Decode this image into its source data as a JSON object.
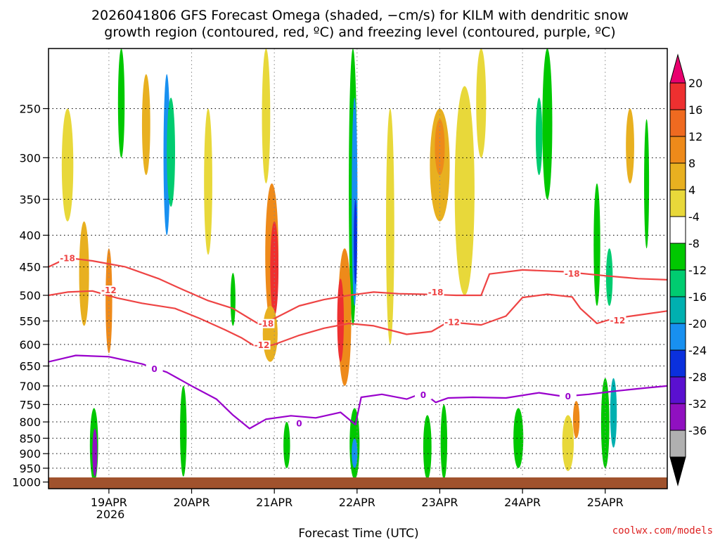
{
  "colors": {
    "snow_growth": "#ee4444",
    "freezing": "#9900cc",
    "ground": "#a0522d",
    "credit": "#dd2222"
  },
  "chart_data": {
    "type": "heatmap",
    "title_line1": "2026041806 GFS Forecast Omega (shaded, −cm/s) for KILM with dendritic snow",
    "title_line2": "growth region (contoured, red, ºC) and freezing level (contoured, purple, ºC)",
    "xlabel": "Forecast Time (UTC)",
    "credit": "coolwx.com/models",
    "x_year_label": "2026",
    "x_ticks": [
      {
        "day": 1,
        "label": "19APR"
      },
      {
        "day": 2,
        "label": "20APR"
      },
      {
        "day": 3,
        "label": "21APR"
      },
      {
        "day": 4,
        "label": "22APR"
      },
      {
        "day": 5,
        "label": "23APR"
      },
      {
        "day": 6,
        "label": "24APR"
      },
      {
        "day": 7,
        "label": "25APR"
      }
    ],
    "xlim_days": [
      0.27,
      7.75
    ],
    "y_ticks": [
      "250",
      "300",
      "350",
      "400",
      "450",
      "500",
      "550",
      "600",
      "650",
      "700",
      "750",
      "800",
      "850",
      "900",
      "950",
      "1000"
    ],
    "y_tick_values": [
      250,
      300,
      350,
      400,
      450,
      500,
      550,
      600,
      650,
      700,
      750,
      800,
      850,
      900,
      950,
      1000
    ],
    "ylim_hpa": [
      200,
      1025
    ],
    "colorbar": {
      "labels": [
        "20",
        "16",
        "12",
        "8",
        "4",
        "-4",
        "-8",
        "-12",
        "-16",
        "-20",
        "-24",
        "-28",
        "-32",
        "-36"
      ],
      "colors": [
        "#e8006e",
        "#ee3030",
        "#ef6a20",
        "#ee8a1a",
        "#e8b020",
        "#e8d83a",
        "#ffffff",
        "#00c800",
        "#00cc70",
        "#00b0b0",
        "#1890f0",
        "#0a30dd",
        "#5a10d0",
        "#9010c0",
        "#b0b0b0",
        "#000000"
      ]
    },
    "series": [
      {
        "name": "-18 ºC",
        "type": "contour",
        "color": "#ee4444",
        "label": "-18",
        "points": [
          [
            0.27,
            450
          ],
          [
            0.5,
            435
          ],
          [
            0.8,
            440
          ],
          [
            1.2,
            450
          ],
          [
            1.6,
            470
          ],
          [
            1.9,
            490
          ],
          [
            2.2,
            510
          ],
          [
            2.5,
            525
          ],
          [
            2.7,
            545
          ],
          [
            2.85,
            560
          ],
          [
            3.0,
            545
          ],
          [
            3.3,
            520
          ],
          [
            3.6,
            508
          ],
          [
            3.9,
            500
          ],
          [
            4.2,
            494
          ],
          [
            4.5,
            497
          ],
          [
            4.8,
            498
          ],
          [
            5.2,
            500
          ],
          [
            5.5,
            500
          ],
          [
            5.6,
            462
          ],
          [
            6.0,
            455
          ],
          [
            6.5,
            458
          ],
          [
            7.0,
            465
          ],
          [
            7.4,
            470
          ],
          [
            7.75,
            472
          ]
        ],
        "label_at": [
          [
            0.5,
            436
          ],
          [
            2.9,
            556
          ],
          [
            4.95,
            495
          ],
          [
            6.6,
            462
          ]
        ]
      },
      {
        "name": "-12 ºC",
        "type": "contour",
        "color": "#ee4444",
        "label": "-12",
        "points": [
          [
            0.27,
            500
          ],
          [
            0.5,
            494
          ],
          [
            0.8,
            492
          ],
          [
            1.1,
            505
          ],
          [
            1.4,
            515
          ],
          [
            1.8,
            525
          ],
          [
            2.1,
            545
          ],
          [
            2.4,
            568
          ],
          [
            2.6,
            585
          ],
          [
            2.8,
            608
          ],
          [
            3.0,
            600
          ],
          [
            3.3,
            580
          ],
          [
            3.6,
            565
          ],
          [
            3.9,
            555
          ],
          [
            4.2,
            560
          ],
          [
            4.6,
            578
          ],
          [
            4.9,
            572
          ],
          [
            5.1,
            552
          ],
          [
            5.5,
            558
          ],
          [
            5.8,
            540
          ],
          [
            6.0,
            504
          ],
          [
            6.3,
            498
          ],
          [
            6.6,
            503
          ],
          [
            6.7,
            525
          ],
          [
            6.9,
            555
          ],
          [
            7.1,
            545
          ],
          [
            7.4,
            538
          ],
          [
            7.75,
            530
          ]
        ],
        "label_at": [
          [
            1.0,
            491
          ],
          [
            2.85,
            602
          ],
          [
            5.15,
            553
          ],
          [
            7.15,
            549
          ]
        ]
      },
      {
        "name": "0 ºC",
        "type": "contour",
        "color": "#9900cc",
        "label": "0",
        "points": [
          [
            0.27,
            640
          ],
          [
            0.6,
            625
          ],
          [
            1.0,
            628
          ],
          [
            1.4,
            645
          ],
          [
            1.7,
            665
          ],
          [
            2.0,
            700
          ],
          [
            2.3,
            735
          ],
          [
            2.5,
            780
          ],
          [
            2.7,
            820
          ],
          [
            2.9,
            792
          ],
          [
            3.2,
            782
          ],
          [
            3.5,
            788
          ],
          [
            3.8,
            772
          ],
          [
            3.98,
            808
          ],
          [
            4.05,
            730
          ],
          [
            4.3,
            722
          ],
          [
            4.6,
            735
          ],
          [
            4.8,
            718
          ],
          [
            4.95,
            744
          ],
          [
            5.1,
            732
          ],
          [
            5.4,
            730
          ],
          [
            5.8,
            732
          ],
          [
            6.2,
            718
          ],
          [
            6.5,
            728
          ],
          [
            6.8,
            722
          ],
          [
            7.1,
            714
          ],
          [
            7.5,
            705
          ],
          [
            7.75,
            700
          ]
        ],
        "label_at": [
          [
            1.55,
            658
          ],
          [
            3.3,
            805
          ],
          [
            4.8,
            724
          ],
          [
            6.55,
            728
          ]
        ]
      }
    ]
  }
}
